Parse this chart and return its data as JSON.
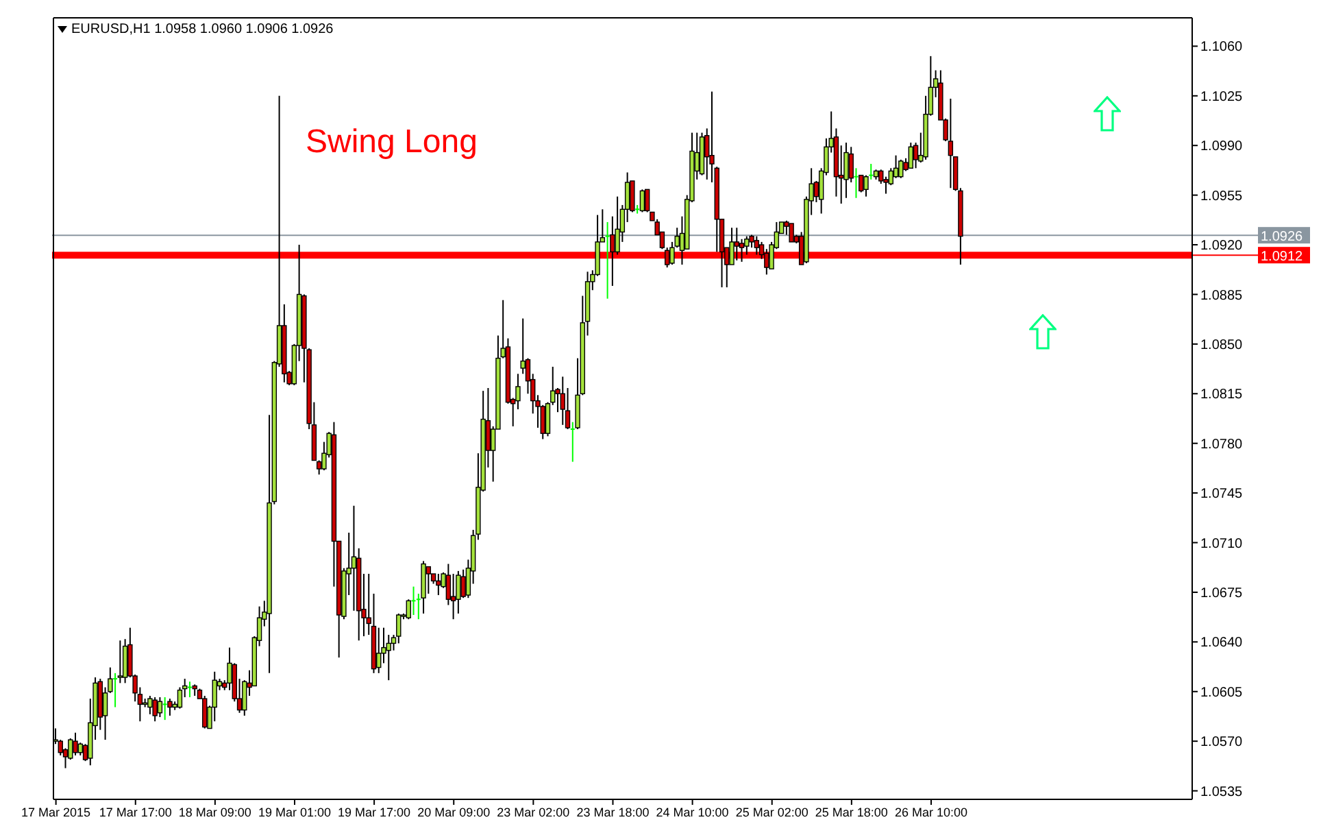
{
  "chart_data": {
    "type": "candlestick",
    "title": "EURUSD,H1  1.0958 1.0960 1.0906 1.0926",
    "annotations": [
      "Swing Long"
    ],
    "categories": [
      "17 Mar 2015",
      null,
      null,
      null,
      null,
      null,
      null,
      null,
      null,
      null,
      null,
      null,
      null,
      null,
      null,
      null,
      "17 Mar 17:00",
      null,
      null,
      null,
      null,
      null,
      null,
      null,
      null,
      null,
      null,
      null,
      null,
      null,
      null,
      null,
      "18 Mar 09:00",
      null,
      null,
      null,
      null,
      null,
      null,
      null,
      null,
      null,
      null,
      null,
      null,
      null,
      null,
      null,
      "19 Mar 01:00",
      null,
      null,
      null,
      null,
      null,
      null,
      null,
      null,
      null,
      null,
      null,
      null,
      null,
      null,
      null,
      "19 Mar 17:00",
      null,
      null,
      null,
      null,
      null,
      null,
      null,
      null,
      null,
      null,
      null,
      null,
      null,
      null,
      null,
      "20 Mar 09:00",
      null,
      null,
      null,
      null,
      null,
      null,
      null,
      null,
      null,
      null,
      null,
      null,
      null,
      null,
      null,
      "23 Mar 02:00",
      null,
      null,
      null,
      null,
      null,
      null,
      null,
      null,
      null,
      null,
      null,
      null,
      null,
      null,
      null,
      "23 Mar 18:00",
      null,
      null,
      null,
      null,
      null,
      null,
      null,
      null,
      null,
      null,
      null,
      null,
      null,
      null,
      null,
      "24 Mar 10:00",
      null,
      null,
      null,
      null,
      null,
      null,
      null,
      null,
      null,
      null,
      null,
      null,
      null,
      null,
      null,
      "25 Mar 02:00",
      null,
      null,
      null,
      null,
      null,
      null,
      null,
      null,
      null,
      null,
      null,
      null,
      null,
      null,
      null,
      "25 Mar 18:00",
      null,
      null,
      null,
      null,
      null,
      null,
      null,
      null,
      null,
      null,
      null,
      null,
      null,
      null,
      null,
      "26 Mar 10:00",
      null,
      null,
      null,
      null,
      null,
      null,
      null,
      null,
      null,
      null,
      null,
      null,
      null,
      null,
      null,
      null,
      null,
      null,
      null,
      null,
      null,
      null,
      null,
      null,
      null,
      null,
      null,
      null,
      null,
      null,
      null,
      null,
      null,
      null,
      null,
      null,
      null,
      null,
      null,
      null,
      null,
      null,
      null,
      null,
      null,
      null,
      null,
      null,
      null,
      null,
      null,
      null
    ],
    "ohlc": [
      [
        1.057,
        1.0579,
        1.0568,
        1.0571
      ],
      [
        1.057,
        1.0571,
        1.056,
        1.0562
      ],
      [
        1.0564,
        1.0565,
        1.0551,
        1.0559
      ],
      [
        1.0558,
        1.0572,
        1.0557,
        1.0571
      ],
      [
        1.057,
        1.0576,
        1.056,
        1.0562
      ],
      [
        1.0562,
        1.0569,
        1.056,
        1.0568
      ],
      [
        1.0567,
        1.0568,
        1.0556,
        1.0557
      ],
      [
        1.0558,
        1.06,
        1.0553,
        1.0583
      ],
      [
        1.0581,
        1.0615,
        1.0571,
        1.0611
      ],
      [
        1.0612,
        1.0614,
        1.0578,
        1.0587
      ],
      [
        1.0588,
        1.0608,
        1.0571,
        1.0604
      ],
      [
        1.0605,
        1.0622,
        1.0604,
        1.0614
      ],
      [
        1.0614,
        1.0618,
        1.0594,
        1.0614
      ],
      [
        1.0615,
        1.0641,
        1.0611,
        1.0616
      ],
      [
        1.0615,
        1.0642,
        1.0611,
        1.0637
      ],
      [
        1.0638,
        1.065,
        1.0615,
        1.0616
      ],
      [
        1.0616,
        1.0617,
        1.0598,
        1.0604
      ],
      [
        1.0603,
        1.0608,
        1.0584,
        1.0596
      ],
      [
        1.0596,
        1.06,
        1.0594,
        1.0597
      ],
      [
        1.0594,
        1.0602,
        1.0589,
        1.06
      ],
      [
        1.0599,
        1.0601,
        1.0584,
        1.0588
      ],
      [
        1.059,
        1.0601,
        1.0587,
        1.0598
      ],
      [
        1.0596,
        1.0601,
        1.0585,
        1.0596
      ],
      [
        1.0598,
        1.06,
        1.0588,
        1.0594
      ],
      [
        1.0594,
        1.0598,
        1.0592,
        1.0596
      ],
      [
        1.0594,
        1.0608,
        1.0593,
        1.0606
      ],
      [
        1.0607,
        1.0614,
        1.0601,
        1.0609
      ],
      [
        1.0608,
        1.0612,
        1.0601,
        1.0608
      ],
      [
        1.0609,
        1.061,
        1.0602,
        1.0607
      ],
      [
        1.0606,
        1.0607,
        1.06,
        1.06
      ],
      [
        1.06,
        1.0602,
        1.0579,
        1.058
      ],
      [
        1.0579,
        1.0595,
        1.0579,
        1.0594
      ],
      [
        1.0594,
        1.0619,
        1.0584,
        1.0613
      ],
      [
        1.0609,
        1.0614,
        1.0606,
        1.0612
      ],
      [
        1.0611,
        1.0613,
        1.0606,
        1.0608
      ],
      [
        1.0611,
        1.0636,
        1.0606,
        1.0625
      ],
      [
        1.0624,
        1.0625,
        1.0598,
        1.06
      ],
      [
        1.06,
        1.0614,
        1.059,
        1.0592
      ],
      [
        1.0592,
        1.0613,
        1.0588,
        1.0612
      ],
      [
        1.0611,
        1.062,
        1.0602,
        1.0608
      ],
      [
        1.0609,
        1.0644,
        1.0609,
        1.0643
      ],
      [
        1.0641,
        1.0665,
        1.0637,
        1.0657
      ],
      [
        1.0656,
        1.0669,
        1.0651,
        1.0661
      ],
      [
        1.066,
        1.08,
        1.0618,
        1.0738
      ],
      [
        1.0739,
        1.0838,
        1.0737,
        1.0837
      ],
      [
        1.0836,
        1.1025,
        1.0834,
        1.0863
      ],
      [
        1.0863,
        1.0878,
        1.0823,
        1.0829
      ],
      [
        1.083,
        1.0831,
        1.0821,
        1.0822
      ],
      [
        1.0822,
        1.085,
        1.0821,
        1.0849
      ],
      [
        1.0849,
        1.092,
        1.0838,
        1.0885
      ],
      [
        1.0884,
        1.0885,
        1.0823,
        1.0847
      ],
      [
        1.0846,
        1.0847,
        1.079,
        1.0794
      ],
      [
        1.0793,
        1.0809,
        1.0768,
        1.0768
      ],
      [
        1.0767,
        1.0768,
        1.0758,
        1.0762
      ],
      [
        1.0762,
        1.0781,
        1.0761,
        1.0773
      ],
      [
        1.0772,
        1.0788,
        1.077,
        1.0787
      ],
      [
        1.0786,
        1.0795,
        1.0679,
        1.0711
      ],
      [
        1.0711,
        1.0711,
        1.0629,
        1.0659
      ],
      [
        1.0658,
        1.0692,
        1.0656,
        1.069
      ],
      [
        1.0688,
        1.0717,
        1.0673,
        1.0692
      ],
      [
        1.0692,
        1.0736,
        1.0662,
        1.07
      ],
      [
        1.0699,
        1.0706,
        1.0641,
        1.0662
      ],
      [
        1.0663,
        1.0688,
        1.0644,
        1.0657
      ],
      [
        1.0657,
        1.0688,
        1.0645,
        1.0653
      ],
      [
        1.0651,
        1.0674,
        1.0618,
        1.0621
      ],
      [
        1.0622,
        1.065,
        1.0618,
        1.0632
      ],
      [
        1.0632,
        1.065,
        1.0625,
        1.0636
      ],
      [
        1.0634,
        1.0645,
        1.0613,
        1.0639
      ],
      [
        1.0639,
        1.0645,
        1.0634,
        1.0643
      ],
      [
        1.0644,
        1.066,
        1.0639,
        1.0659
      ],
      [
        1.0658,
        1.066,
        1.0656,
        1.0659
      ],
      [
        1.0657,
        1.067,
        1.0656,
        1.0669
      ],
      [
        1.0669,
        1.0679,
        1.0659,
        1.0669
      ],
      [
        1.067,
        1.0674,
        1.0656,
        1.067
      ],
      [
        1.0671,
        1.0697,
        1.066,
        1.0695
      ],
      [
        1.0693,
        1.0693,
        1.0674,
        1.0688
      ],
      [
        1.0688,
        1.0688,
        1.0681,
        1.0683
      ],
      [
        1.0683,
        1.0688,
        1.0673,
        1.068
      ],
      [
        1.0679,
        1.0689,
        1.0678,
        1.0688
      ],
      [
        1.0687,
        1.0695,
        1.0666,
        1.067
      ],
      [
        1.0672,
        1.0688,
        1.0656,
        1.0669
      ],
      [
        1.067,
        1.069,
        1.066,
        1.0687
      ],
      [
        1.0686,
        1.0691,
        1.0671,
        1.0672
      ],
      [
        1.0673,
        1.0698,
        1.0671,
        1.0692
      ],
      [
        1.069,
        1.0719,
        1.0681,
        1.0715
      ],
      [
        1.0716,
        1.0773,
        1.0712,
        1.0749
      ],
      [
        1.0747,
        1.0817,
        1.0746,
        1.0797
      ],
      [
        1.0796,
        1.0819,
        1.0763,
        1.0775
      ],
      [
        1.0775,
        1.0792,
        1.0753,
        1.079
      ],
      [
        1.079,
        1.0856,
        1.079,
        1.084
      ],
      [
        1.0841,
        1.0881,
        1.084,
        1.0847
      ],
      [
        1.0848,
        1.0854,
        1.0808,
        1.0809
      ],
      [
        1.0811,
        1.0812,
        1.0792,
        1.0808
      ],
      [
        1.081,
        1.0829,
        1.0804,
        1.082
      ],
      [
        1.0833,
        1.0868,
        1.0829,
        1.0838
      ],
      [
        1.0839,
        1.084,
        1.0815,
        1.0824
      ],
      [
        1.0825,
        1.0829,
        1.0801,
        1.081
      ],
      [
        1.081,
        1.0814,
        1.0791,
        1.0806
      ],
      [
        1.0806,
        1.0807,
        1.0783,
        1.0787
      ],
      [
        1.0787,
        1.0809,
        1.0785,
        1.0808
      ],
      [
        1.0809,
        1.0834,
        1.0807,
        1.0817
      ],
      [
        1.0818,
        1.0819,
        1.0802,
        1.0815
      ],
      [
        1.0815,
        1.0827,
        1.0793,
        1.0804
      ],
      [
        1.0803,
        1.0819,
        1.079,
        1.0791
      ],
      [
        1.079,
        1.0795,
        1.0767,
        1.079
      ],
      [
        1.0791,
        1.084,
        1.079,
        1.0814
      ],
      [
        1.0815,
        1.0884,
        1.0814,
        1.0865
      ],
      [
        1.0866,
        1.0901,
        1.0856,
        1.0894
      ],
      [
        1.0894,
        1.0902,
        1.0888,
        1.0899
      ],
      [
        1.0899,
        1.0941,
        1.0898,
        1.0922
      ],
      [
        1.0922,
        1.0945,
        1.0922,
        1.0925
      ],
      [
        1.0926,
        1.0936,
        1.0882,
        1.0926
      ],
      [
        1.0927,
        1.094,
        1.0891,
        1.0915
      ],
      [
        1.0915,
        1.0954,
        1.0913,
        1.0931
      ],
      [
        1.0929,
        1.0948,
        1.0922,
        1.0945
      ],
      [
        1.0945,
        1.0971,
        1.0936,
        1.0964
      ],
      [
        1.0965,
        1.0965,
        1.0943,
        1.0944
      ],
      [
        1.0945,
        1.0948,
        1.0942,
        1.0945
      ],
      [
        1.0944,
        1.0959,
        1.0943,
        1.0958
      ],
      [
        1.0959,
        1.0959,
        1.0943,
        1.0944
      ],
      [
        1.0943,
        1.0943,
        1.0937,
        1.0937
      ],
      [
        1.0936,
        1.0938,
        1.0927,
        1.0927
      ],
      [
        1.0929,
        1.0929,
        1.0917,
        1.0918
      ],
      [
        1.0916,
        1.0918,
        1.0904,
        1.0906
      ],
      [
        1.0907,
        1.0922,
        1.0906,
        1.0918
      ],
      [
        1.0919,
        1.0932,
        1.0918,
        1.0926
      ],
      [
        1.0916,
        1.094,
        1.0906,
        1.0928
      ],
      [
        1.0917,
        1.0955,
        1.0917,
        1.0952
      ],
      [
        1.0951,
        1.0999,
        1.095,
        1.0986
      ],
      [
        1.0972,
        1.0999,
        1.0966,
        1.0985
      ],
      [
        1.097,
        1.0999,
        1.0969,
        1.0996
      ],
      [
        1.0997,
        1.1002,
        1.0966,
        1.0982
      ],
      [
        1.0983,
        1.1028,
        1.0964,
        1.0977
      ],
      [
        1.0974,
        1.0975,
        1.0915,
        1.0938
      ],
      [
        1.0938,
        1.0938,
        1.089,
        1.0915
      ],
      [
        1.0918,
        1.0918,
        1.089,
        1.0906
      ],
      [
        1.0906,
        1.0932,
        1.0906,
        1.0922
      ],
      [
        1.0922,
        1.0932,
        1.0909,
        1.0919
      ],
      [
        1.0921,
        1.0924,
        1.0908,
        1.0918
      ],
      [
        1.0919,
        1.0926,
        1.0913,
        1.0924
      ],
      [
        1.0926,
        1.0927,
        1.0918,
        1.0922
      ],
      [
        1.0923,
        1.0926,
        1.0913,
        1.0918
      ],
      [
        1.092,
        1.0922,
        1.091,
        1.0913
      ],
      [
        1.0914,
        1.0917,
        1.0899,
        1.0904
      ],
      [
        1.0903,
        1.0922,
        1.0903,
        1.092
      ],
      [
        1.0918,
        1.0936,
        1.0917,
        1.0929
      ],
      [
        1.0928,
        1.0936,
        1.0928,
        1.0936
      ],
      [
        1.0936,
        1.0937,
        1.0927,
        1.0933
      ],
      [
        1.0935,
        1.0935,
        1.0922,
        1.0922
      ],
      [
        1.0926,
        1.0927,
        1.0921,
        1.0922
      ],
      [
        1.0926,
        1.0929,
        1.0906,
        1.0906
      ],
      [
        1.0908,
        1.0954,
        1.0907,
        1.0952
      ],
      [
        1.0951,
        1.0974,
        1.0941,
        1.0963
      ],
      [
        1.0964,
        1.0965,
        1.095,
        1.0954
      ],
      [
        1.0952,
        1.0974,
        1.0942,
        1.0972
      ],
      [
        1.0971,
        1.0995,
        1.0969,
        1.0989
      ],
      [
        1.0989,
        1.1014,
        1.0985,
        1.0995
      ],
      [
        1.0996,
        1.1002,
        1.0954,
        1.0968
      ],
      [
        1.0969,
        1.099,
        1.0949,
        1.0967
      ],
      [
        1.0966,
        1.0992,
        1.0953,
        1.0985
      ],
      [
        1.0984,
        1.0989,
        1.0964,
        1.0967
      ],
      [
        1.0968,
        1.0974,
        1.0953,
        1.0968
      ],
      [
        1.0969,
        1.0969,
        1.0957,
        1.0958
      ],
      [
        1.0959,
        1.0969,
        1.0954,
        1.0968
      ],
      [
        1.0969,
        1.0977,
        1.0966,
        1.0969
      ],
      [
        1.0968,
        1.0973,
        1.0966,
        1.0972
      ],
      [
        1.0972,
        1.0973,
        1.0963,
        1.0965
      ],
      [
        1.0966,
        1.0968,
        1.0956,
        1.0964
      ],
      [
        1.0963,
        1.0974,
        1.0962,
        1.0972
      ],
      [
        1.0968,
        1.0983,
        1.0967,
        1.0974
      ],
      [
        1.0968,
        1.098,
        1.0967,
        1.0979
      ],
      [
        1.0978,
        1.0981,
        1.0972,
        1.0973
      ],
      [
        1.0974,
        1.0992,
        1.0974,
        1.0989
      ],
      [
        1.099,
        1.0992,
        1.0974,
        1.098
      ],
      [
        1.0979,
        1.0999,
        1.0978,
        1.0983
      ],
      [
        1.0982,
        1.1025,
        1.098,
        1.1012
      ],
      [
        1.1012,
        1.1053,
        1.1011,
        1.1031
      ],
      [
        1.1031,
        1.1043,
        1.1024,
        1.1037
      ],
      [
        1.1034,
        1.1043,
        1.1008,
        1.1008
      ],
      [
        1.1008,
        1.1009,
        1.0993,
        1.0994
      ],
      [
        1.0993,
        1.1023,
        1.096,
        1.0983
      ],
      [
        1.0982,
        1.0982,
        1.0958,
        1.0959
      ],
      [
        1.0958,
        1.096,
        1.0906,
        1.0926
      ],
      null,
      null,
      null,
      null,
      null,
      null,
      null,
      null,
      null,
      null,
      null,
      null,
      null,
      null,
      null,
      null,
      null,
      null,
      null,
      null,
      null,
      null,
      null,
      null,
      null,
      null,
      null,
      null,
      null,
      null,
      null,
      null,
      null,
      null,
      null,
      null,
      null,
      null,
      null,
      null,
      null,
      null,
      null,
      null,
      null,
      null
    ],
    "colors": [
      "#a4e23c",
      "#cc0000",
      "#cc0000",
      "#a4e23c",
      "#cc0000",
      "#a4e23c",
      "#cc0000",
      "#a4e23c",
      "#a4e23c",
      "#cc0000",
      "#a4e23c",
      "#a4e23c",
      "#00ff00",
      "#a4e23c",
      "#a4e23c",
      "#cc0000",
      "#cc0000",
      "#cc0000",
      "#a4e23c",
      "#a4e23c",
      "#cc0000",
      "#a4e23c",
      "#00ff00",
      "#cc0000",
      "#a4e23c",
      "#a4e23c",
      "#a4e23c",
      "#00ff00",
      "#cc0000",
      "#cc0000",
      "#cc0000",
      "#a4e23c",
      "#a4e23c",
      "#a4e23c",
      "#cc0000",
      "#a4e23c",
      "#cc0000",
      "#cc0000",
      "#a4e23c",
      "#cc0000",
      "#a4e23c",
      "#a4e23c",
      "#a4e23c",
      "#a4e23c",
      "#a4e23c",
      "#a4e23c",
      "#cc0000",
      "#cc0000",
      "#a4e23c",
      "#a4e23c",
      "#cc0000",
      "#cc0000",
      "#cc0000",
      "#cc0000",
      "#a4e23c",
      "#a4e23c",
      "#cc0000",
      "#cc0000",
      "#a4e23c",
      "#a4e23c",
      "#a4e23c",
      "#cc0000",
      "#cc0000",
      "#cc0000",
      "#cc0000",
      "#a4e23c",
      "#a4e23c",
      "#a4e23c",
      "#a4e23c",
      "#a4e23c",
      "#a4e23c",
      "#a4e23c",
      "#00ff00",
      "#00ff00",
      "#a4e23c",
      "#cc0000",
      "#cc0000",
      "#cc0000",
      "#a4e23c",
      "#cc0000",
      "#cc0000",
      "#a4e23c",
      "#cc0000",
      "#a4e23c",
      "#a4e23c",
      "#a4e23c",
      "#a4e23c",
      "#cc0000",
      "#a4e23c",
      "#a4e23c",
      "#a4e23c",
      "#cc0000",
      "#cc0000",
      "#a4e23c",
      "#a4e23c",
      "#cc0000",
      "#cc0000",
      "#cc0000",
      "#cc0000",
      "#a4e23c",
      "#a4e23c",
      "#cc0000",
      "#cc0000",
      "#cc0000",
      "#00ff00",
      "#a4e23c",
      "#a4e23c",
      "#a4e23c",
      "#a4e23c",
      "#a4e23c",
      "#a4e23c",
      "#00ff00",
      "#cc0000",
      "#a4e23c",
      "#a4e23c",
      "#a4e23c",
      "#cc0000",
      "#00ff00",
      "#a4e23c",
      "#cc0000",
      "#cc0000",
      "#cc0000",
      "#cc0000",
      "#cc0000",
      "#a4e23c",
      "#a4e23c",
      "#a4e23c",
      "#a4e23c",
      "#a4e23c",
      "#a4e23c",
      "#a4e23c",
      "#cc0000",
      "#cc0000",
      "#cc0000",
      "#cc0000",
      "#cc0000",
      "#a4e23c",
      "#cc0000",
      "#cc0000",
      "#a4e23c",
      "#cc0000",
      "#cc0000",
      "#cc0000",
      "#cc0000",
      "#a4e23c",
      "#a4e23c",
      "#a4e23c",
      "#cc0000",
      "#cc0000",
      "#cc0000",
      "#cc0000",
      "#a4e23c",
      "#a4e23c",
      "#cc0000",
      "#a4e23c",
      "#a4e23c",
      "#a4e23c",
      "#cc0000",
      "#cc0000",
      "#a4e23c",
      "#cc0000",
      "#00ff00",
      "#cc0000",
      "#a4e23c",
      "#00ff00",
      "#a4e23c",
      "#cc0000",
      "#cc0000",
      "#a4e23c",
      "#a4e23c",
      "#a4e23c",
      "#cc0000",
      "#a4e23c",
      "#cc0000",
      "#a4e23c",
      "#a4e23c",
      "#a4e23c",
      "#a4e23c",
      "#cc0000",
      "#cc0000",
      "#cc0000",
      "#cc0000",
      "#cc0000",
      null,
      null,
      null,
      null,
      null,
      null,
      null,
      null,
      null,
      null,
      null,
      null,
      null,
      null,
      null,
      null,
      null,
      null,
      null,
      null,
      null,
      null,
      null,
      null,
      null,
      null,
      null,
      null,
      null,
      null,
      null,
      null,
      null,
      null,
      null,
      null,
      null,
      null,
      null,
      null,
      null,
      null,
      null,
      null,
      null,
      null
    ],
    "ylim": [
      1.0529,
      1.108
    ],
    "yticks": [
      {
        "value": 1.0535,
        "label": "1.0535"
      },
      {
        "value": 1.057,
        "label": "1.0570"
      },
      {
        "value": 1.0605,
        "label": "1.0605"
      },
      {
        "value": 1.064,
        "label": "1.0640"
      },
      {
        "value": 1.0675,
        "label": "1.0675"
      },
      {
        "value": 1.071,
        "label": "1.0710"
      },
      {
        "value": 1.0745,
        "label": "1.0745"
      },
      {
        "value": 1.078,
        "label": "1.0780"
      },
      {
        "value": 1.0815,
        "label": "1.0815"
      },
      {
        "value": 1.085,
        "label": "1.0850"
      },
      {
        "value": 1.0885,
        "label": "1.0885"
      },
      {
        "value": 1.092,
        "label": "1.0920"
      },
      {
        "value": 1.0955,
        "label": "1.0955"
      },
      {
        "value": 1.099,
        "label": "1.0990"
      },
      {
        "value": 1.1025,
        "label": "1.1025"
      },
      {
        "value": 1.106,
        "label": "1.1060"
      }
    ],
    "ref_lines": [
      {
        "axis": "y",
        "value": 1.0926,
        "label": "1.0926",
        "color": "#8a96a0"
      },
      {
        "axis": "y",
        "value": 1.0912,
        "label": "1.0912",
        "color": "#ff0000"
      }
    ]
  }
}
